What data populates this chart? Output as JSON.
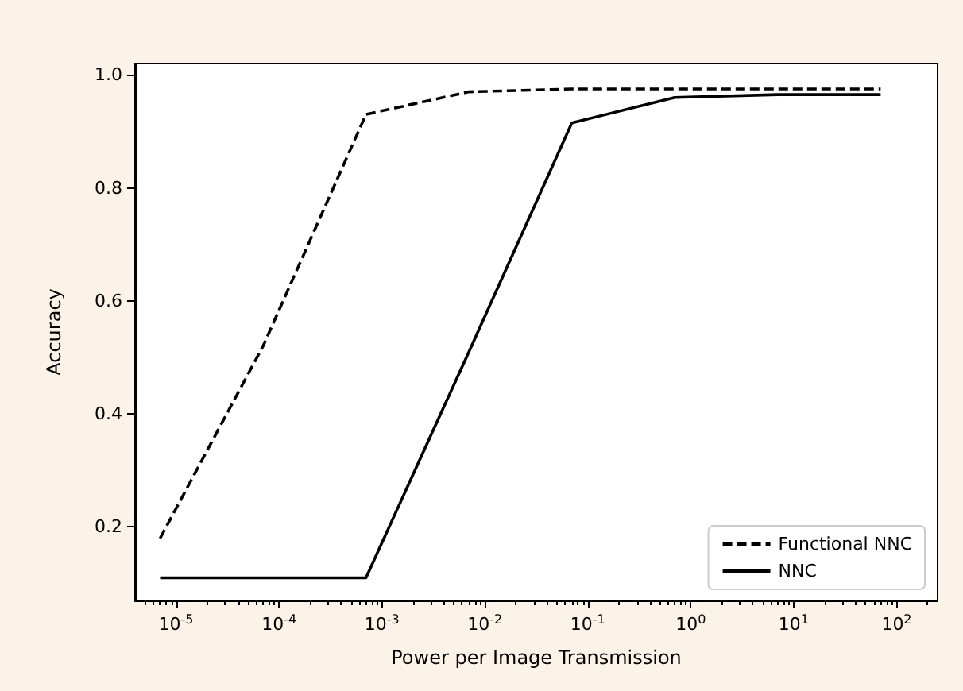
{
  "chart_data": {
    "type": "line",
    "xlabel": "Power per Image Transmission",
    "ylabel": "Accuracy",
    "x": [
      7e-06,
      7e-05,
      0.0007,
      0.007,
      0.07,
      0.7,
      7,
      70
    ],
    "series": [
      {
        "name": "Functional NNC",
        "color": "#000000",
        "line_style": "dashed",
        "values": [
          0.18,
          0.52,
          0.93,
          0.97,
          0.975,
          0.975,
          0.975,
          0.975
        ]
      },
      {
        "name": "NNC",
        "color": "#000000",
        "line_style": "solid",
        "values": [
          0.11,
          0.11,
          0.11,
          0.51,
          0.915,
          0.96,
          0.965,
          0.965
        ]
      }
    ],
    "log": "x",
    "xlim": [
      4e-06,
      250
    ],
    "ylim": [
      0.07,
      1.02
    ],
    "xticks": [
      {
        "value": 1e-05,
        "label": "10$^{-5}$"
      },
      {
        "value": 0.0001,
        "label": "10$^{-4}$"
      },
      {
        "value": 0.001,
        "label": "10$^{-3}$"
      },
      {
        "value": 0.01,
        "label": "10$^{-2}$"
      },
      {
        "value": 0.1,
        "label": "10$^{-1}$"
      },
      {
        "value": 1,
        "label": "10$^{0}$"
      },
      {
        "value": 10,
        "label": "10$^{1}$"
      },
      {
        "value": 100,
        "label": "10$^{2}$"
      }
    ],
    "yticks": [
      0.2,
      0.4,
      0.6,
      0.8,
      {
        "value": 1,
        "label": "1.0"
      }
    ],
    "grid": false,
    "legend": "bottom right",
    "marker": "none"
  }
}
